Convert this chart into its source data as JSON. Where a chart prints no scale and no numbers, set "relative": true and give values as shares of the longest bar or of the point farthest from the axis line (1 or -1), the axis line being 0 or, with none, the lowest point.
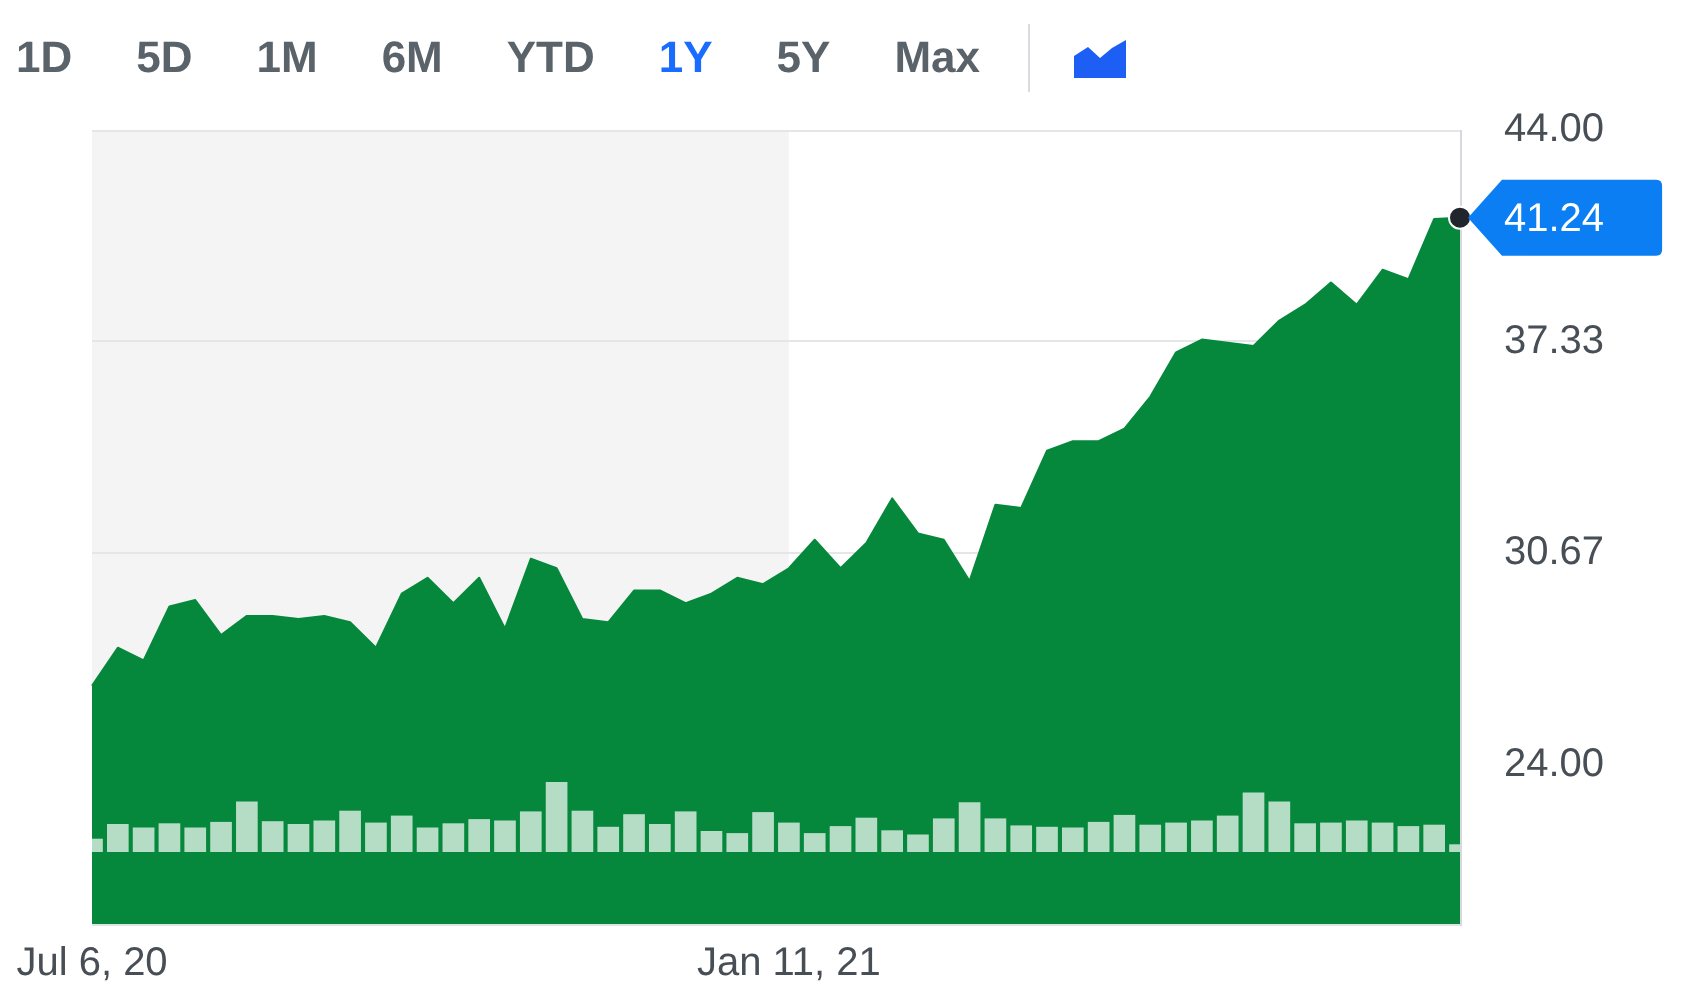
{
  "chart_data": [
    {
      "type": "area",
      "annotations": [
        "1D",
        "5D",
        "1M",
        "6M",
        "YTD",
        "1Y",
        "5Y",
        "Max"
      ],
      "x": [
        "2020-07-06",
        "2020-07-13",
        "2020-07-20",
        "2020-07-27",
        "2020-08-03",
        "2020-08-10",
        "2020-08-17",
        "2020-08-24",
        "2020-08-31",
        "2020-09-07",
        "2020-09-14",
        "2020-09-21",
        "2020-09-28",
        "2020-10-05",
        "2020-10-12",
        "2020-10-19",
        "2020-10-26",
        "2020-11-02",
        "2020-11-09",
        "2020-11-16",
        "2020-11-23",
        "2020-11-30",
        "2020-12-07",
        "2020-12-14",
        "2020-12-21",
        "2020-12-28",
        "2021-01-04",
        "2021-01-11",
        "2021-01-18",
        "2021-01-25",
        "2021-02-01",
        "2021-02-08",
        "2021-02-15",
        "2021-02-22",
        "2021-03-01",
        "2021-03-08",
        "2021-03-15",
        "2021-03-22",
        "2021-03-29",
        "2021-04-05",
        "2021-04-12",
        "2021-04-19",
        "2021-04-26",
        "2021-05-03",
        "2021-05-10",
        "2021-05-17",
        "2021-05-24",
        "2021-05-31",
        "2021-06-07",
        "2021-06-14",
        "2021-06-21",
        "2021-06-28",
        "2021-07-05",
        "2021-07-12"
      ],
      "color": "#06883c",
      "values": [
        26.5,
        27.7,
        27.3,
        29.0,
        29.2,
        28.1,
        28.7,
        28.7,
        28.6,
        28.7,
        28.5,
        27.7,
        29.4,
        29.9,
        29.1,
        29.9,
        28.3,
        30.5,
        30.2,
        28.6,
        28.5,
        29.5,
        29.5,
        29.1,
        29.4,
        29.9,
        29.7,
        30.2,
        31.1,
        30.2,
        31.0,
        32.4,
        31.3,
        31.1,
        29.8,
        32.2,
        32.1,
        33.9,
        34.2,
        34.2,
        34.6,
        35.6,
        37.0,
        37.4,
        37.3,
        37.2,
        38.0,
        38.5,
        39.2,
        38.5,
        39.6,
        39.3,
        41.2,
        41.24
      ],
      "value_labels": [
        null,
        null,
        null,
        null,
        null,
        null,
        null,
        null,
        null,
        null,
        null,
        null,
        null,
        null,
        null,
        null,
        null,
        null,
        null,
        null,
        null,
        null,
        null,
        null,
        null,
        null,
        null,
        null,
        null,
        null,
        null,
        null,
        null,
        null,
        null,
        null,
        null,
        null,
        null,
        null,
        null,
        null,
        null,
        null,
        null,
        null,
        null,
        null,
        null,
        null,
        null,
        null,
        null,
        "41.24"
      ],
      "xlim": [
        "2020-07-06",
        "2021-07-12"
      ],
      "xticks": [
        {
          "value": "2020-07-06",
          "label": "Jul 6, 20"
        },
        {
          "value": "2021-01-11",
          "label": "Jan 11, 21"
        }
      ],
      "ylim": [
        19,
        44
      ],
      "yticks": [
        {
          "value": 24,
          "label": "24.00"
        },
        30.67,
        37.33,
        {
          "value": 44,
          "label": "44.00"
        }
      ],
      "grid": "y",
      "bands": [
        {
          "axis": "x",
          "from": "2020-07-06",
          "to": "2021-01-11",
          "color": "#f4f4f4"
        }
      ]
    },
    {
      "type": "bar",
      "relative": true,
      "tick_labels": false,
      "x": [
        "2020-07-06",
        "2020-07-13",
        "2020-07-20",
        "2020-07-27",
        "2020-08-03",
        "2020-08-10",
        "2020-08-17",
        "2020-08-24",
        "2020-08-31",
        "2020-09-07",
        "2020-09-14",
        "2020-09-21",
        "2020-09-28",
        "2020-10-05",
        "2020-10-12",
        "2020-10-19",
        "2020-10-26",
        "2020-11-02",
        "2020-11-09",
        "2020-11-16",
        "2020-11-23",
        "2020-11-30",
        "2020-12-07",
        "2020-12-14",
        "2020-12-21",
        "2020-12-28",
        "2021-01-04",
        "2021-01-11",
        "2021-01-18",
        "2021-01-25",
        "2021-02-01",
        "2021-02-08",
        "2021-02-15",
        "2021-02-22",
        "2021-03-01",
        "2021-03-08",
        "2021-03-15",
        "2021-03-22",
        "2021-03-29",
        "2021-04-05",
        "2021-04-12",
        "2021-04-19",
        "2021-04-26",
        "2021-05-03",
        "2021-05-10",
        "2021-05-17",
        "2021-05-24",
        "2021-05-31",
        "2021-06-07",
        "2021-06-14",
        "2021-06-21",
        "2021-06-28",
        "2021-07-05",
        "2021-07-12"
      ],
      "color": "#b5dcc4",
      "values": [
        0.19,
        0.4,
        0.35,
        0.41,
        0.35,
        0.43,
        0.72,
        0.44,
        0.4,
        0.45,
        0.59,
        0.42,
        0.52,
        0.35,
        0.41,
        0.47,
        0.45,
        0.58,
        1,
        0.59,
        0.36,
        0.54,
        0.4,
        0.58,
        0.3,
        0.27,
        0.57,
        0.42,
        0.27,
        0.37,
        0.49,
        0.31,
        0.25,
        0.48,
        0.71,
        0.48,
        0.38,
        0.36,
        0.35,
        0.43,
        0.53,
        0.39,
        0.42,
        0.45,
        0.52,
        0.85,
        0.72,
        0.41,
        0.42,
        0.45,
        0.42,
        0.37,
        0.39,
        0.11
      ],
      "xlim": [
        "2020-07-06",
        "2021-07-12"
      ]
    }
  ]
}
